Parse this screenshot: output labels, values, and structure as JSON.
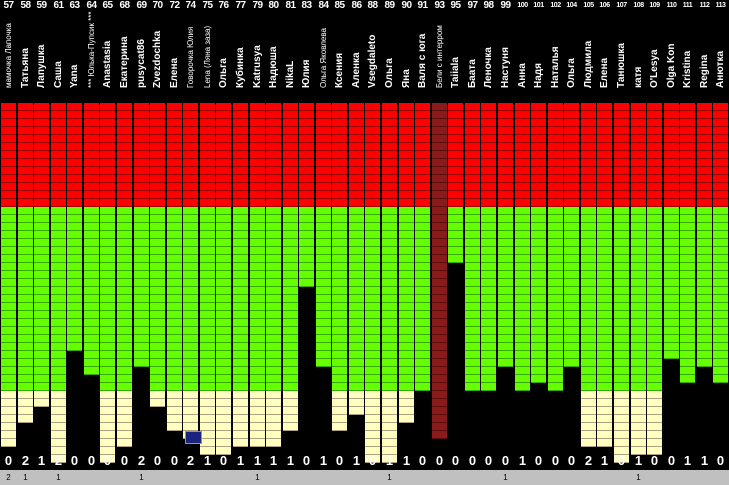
{
  "colors": {
    "red": "#ff0000",
    "green": "#66ff00",
    "yellow": "#ffffc0",
    "dark": "#8b1a1a",
    "background": "#000000",
    "footer": "#c0c0c0"
  },
  "columns": [
    {
      "num": "57",
      "name": "мамочка Лапочка",
      "score": "0",
      "foot": "2",
      "red": 13,
      "green": 23,
      "yellow": 7,
      "smallName": true
    },
    {
      "num": "58",
      "name": "Татьяна",
      "score": "2",
      "foot": "1",
      "red": 13,
      "green": 23,
      "yellow": 4
    },
    {
      "num": "59",
      "name": "Лапушка",
      "score": "1",
      "foot": "",
      "red": 13,
      "green": 23,
      "yellow": 2
    },
    {
      "num": "61",
      "name": "Саша",
      "score": "2",
      "foot": "1",
      "red": 13,
      "green": 23,
      "yellow": 9
    },
    {
      "num": "63",
      "name": "Yana",
      "score": "0",
      "foot": "",
      "red": 13,
      "green": 18,
      "yellow": 0
    },
    {
      "num": "64",
      "name": "*** Юлька-Пупсик ***",
      "score": "0",
      "foot": "",
      "red": 13,
      "green": 21,
      "yellow": 0,
      "smallName": true
    },
    {
      "num": "65",
      "name": "Anastasia",
      "score": "0",
      "foot": "",
      "red": 13,
      "green": 23,
      "yellow": 9
    },
    {
      "num": "68",
      "name": "Екатерина",
      "score": "0",
      "foot": "",
      "red": 13,
      "green": 23,
      "yellow": 7
    },
    {
      "num": "69",
      "name": "pusycat86",
      "score": "2",
      "foot": "1",
      "red": 13,
      "green": 20,
      "yellow": 0
    },
    {
      "num": "70",
      "name": "Zvezdochka",
      "score": "0",
      "foot": "",
      "red": 13,
      "green": 23,
      "yellow": 2
    },
    {
      "num": "72",
      "name": "Елена",
      "score": "0",
      "foot": "",
      "red": 13,
      "green": 23,
      "yellow": 5
    },
    {
      "num": "74",
      "name": "Говорочка Юлия",
      "score": "2",
      "foot": "",
      "red": 13,
      "green": 23,
      "yellow": 6,
      "smallName": true
    },
    {
      "num": "75",
      "name": "Lena (Ляна заза)",
      "score": "1",
      "foot": "",
      "red": 13,
      "green": 23,
      "yellow": 8,
      "smallName": true
    },
    {
      "num": "76",
      "name": "Ольга",
      "score": "0",
      "foot": "",
      "red": 13,
      "green": 23,
      "yellow": 8
    },
    {
      "num": "77",
      "name": "Кубинка",
      "score": "1",
      "foot": "",
      "red": 13,
      "green": 23,
      "yellow": 7
    },
    {
      "num": "79",
      "name": "Katrusya",
      "score": "1",
      "foot": "1",
      "red": 13,
      "green": 23,
      "yellow": 7
    },
    {
      "num": "80",
      "name": "Надюша",
      "score": "1",
      "foot": "",
      "red": 13,
      "green": 23,
      "yellow": 7
    },
    {
      "num": "81",
      "name": "NikaL",
      "score": "1",
      "foot": "",
      "red": 13,
      "green": 23,
      "yellow": 5
    },
    {
      "num": "83",
      "name": "Юлия",
      "score": "0",
      "foot": "",
      "red": 13,
      "green": 10,
      "yellow": 0
    },
    {
      "num": "84",
      "name": "Ольга Яковлева",
      "score": "1",
      "foot": "",
      "red": 13,
      "green": 20,
      "yellow": 0,
      "smallName": true
    },
    {
      "num": "85",
      "name": "Ксения",
      "score": "0",
      "foot": "",
      "red": 13,
      "green": 23,
      "yellow": 5
    },
    {
      "num": "86",
      "name": "Аленка",
      "score": "1",
      "foot": "",
      "red": 13,
      "green": 23,
      "yellow": 3
    },
    {
      "num": "88",
      "name": "Vsegdaleto",
      "score": "0",
      "foot": "",
      "red": 13,
      "green": 23,
      "yellow": 9
    },
    {
      "num": "89",
      "name": "Ольга",
      "score": "1",
      "foot": "1",
      "red": 13,
      "green": 23,
      "yellow": 9
    },
    {
      "num": "90",
      "name": "Яна",
      "score": "1",
      "foot": "",
      "red": 13,
      "green": 23,
      "yellow": 4
    },
    {
      "num": "91",
      "name": "Валя с юга",
      "score": "0",
      "foot": "",
      "red": 13,
      "green": 23,
      "yellow": 0
    },
    {
      "num": "93",
      "name": "Бели с интерром",
      "score": "0",
      "foot": "",
      "red": 0,
      "green": 0,
      "yellow": 0,
      "dark": 42,
      "smallName": true
    },
    {
      "num": "95",
      "name": "Таiiala",
      "score": "0",
      "foot": "",
      "red": 13,
      "green": 7,
      "yellow": 0
    },
    {
      "num": "97",
      "name": "Баата",
      "score": "0",
      "foot": "",
      "red": 13,
      "green": 23,
      "yellow": 0
    },
    {
      "num": "98",
      "name": "Леночка",
      "score": "0",
      "foot": "",
      "red": 13,
      "green": 23,
      "yellow": 0
    },
    {
      "num": "99",
      "name": "Настуня",
      "score": "0",
      "foot": "1",
      "red": 13,
      "green": 20,
      "yellow": 0
    },
    {
      "num": "100",
      "name": "Анна",
      "score": "1",
      "foot": "",
      "red": 13,
      "green": 23,
      "yellow": 0
    },
    {
      "num": "101",
      "name": "Надя",
      "score": "0",
      "foot": "",
      "red": 13,
      "green": 22,
      "yellow": 0
    },
    {
      "num": "102",
      "name": "Наталья",
      "score": "0",
      "foot": "",
      "red": 13,
      "green": 23,
      "yellow": 0
    },
    {
      "num": "104",
      "name": "Ольга",
      "score": "0",
      "foot": "",
      "red": 13,
      "green": 20,
      "yellow": 0
    },
    {
      "num": "105",
      "name": "Людмила",
      "score": "2",
      "foot": "",
      "red": 13,
      "green": 23,
      "yellow": 7
    },
    {
      "num": "106",
      "name": "Елена",
      "score": "1",
      "foot": "",
      "red": 13,
      "green": 23,
      "yellow": 7
    },
    {
      "num": "107",
      "name": "Танюшка",
      "score": "0",
      "foot": "",
      "red": 13,
      "green": 23,
      "yellow": 9
    },
    {
      "num": "108",
      "name": "катя",
      "score": "1",
      "foot": "1",
      "red": 13,
      "green": 23,
      "yellow": 8
    },
    {
      "num": "109",
      "name": "O'Lesya",
      "score": "0",
      "foot": "",
      "red": 13,
      "green": 23,
      "yellow": 8
    },
    {
      "num": "110",
      "name": "Olga Kon",
      "score": "0",
      "foot": "",
      "red": 13,
      "green": 19,
      "yellow": 0
    },
    {
      "num": "111",
      "name": "Kristina",
      "score": "1",
      "foot": "",
      "red": 13,
      "green": 22,
      "yellow": 0
    },
    {
      "num": "112",
      "name": "Regina",
      "score": "1",
      "foot": "",
      "red": 13,
      "green": 20,
      "yellow": 0
    },
    {
      "num": "113",
      "name": "Анютка",
      "score": "0",
      "foot": "",
      "red": 13,
      "green": 22,
      "yellow": 0
    }
  ]
}
